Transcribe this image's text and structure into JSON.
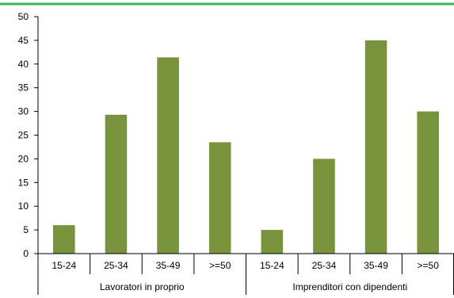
{
  "colors": {
    "bar": "#77933c",
    "top_rule": "#3bb35a",
    "axis": "#000000"
  },
  "chart_data": {
    "type": "bar",
    "groups": [
      {
        "label": "Lavoratori in proprio",
        "categories": [
          "15-24",
          "25-34",
          "35-49",
          ">=50"
        ],
        "values": [
          6,
          29.3,
          41.4,
          23.5
        ]
      },
      {
        "label": "Imprenditori con dipendenti",
        "categories": [
          "15-24",
          "25-34",
          "35-49",
          ">=50"
        ],
        "values": [
          5,
          20,
          45,
          30
        ]
      }
    ],
    "ylim": [
      0,
      50
    ],
    "yticks": [
      "0",
      "5",
      "10",
      "15",
      "20",
      "25",
      "30",
      "35",
      "40",
      "45",
      "50"
    ],
    "grid": false,
    "legend": false
  }
}
